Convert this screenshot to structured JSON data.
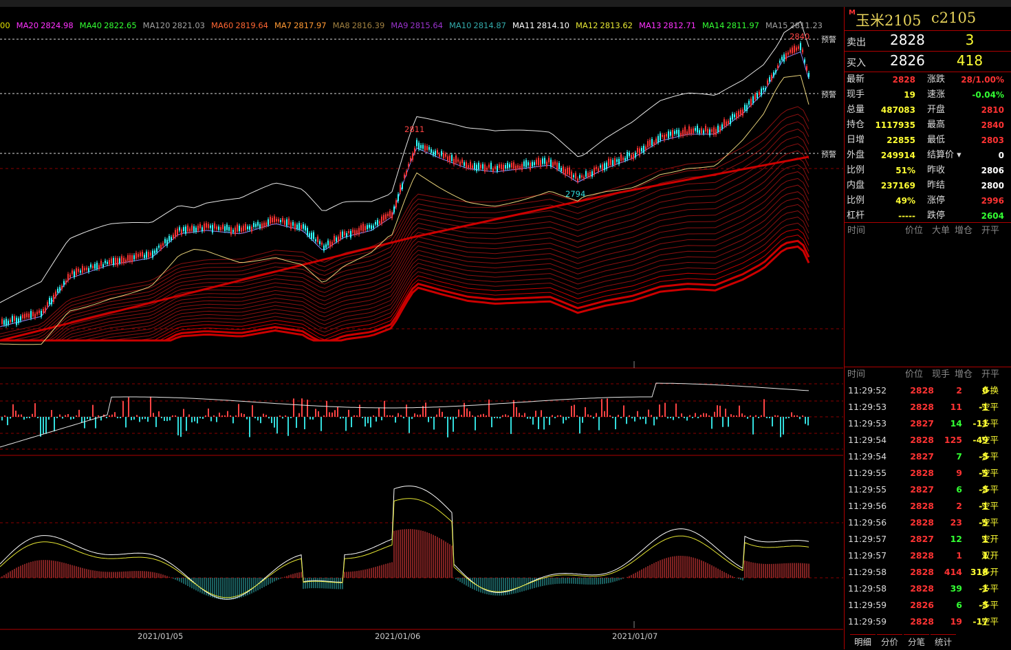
{
  "ma_bar": [
    {
      "label": "",
      "value": "00",
      "color": "#e0e000"
    },
    {
      "label": "MA20",
      "value": "2824.98",
      "color": "#ff33ff"
    },
    {
      "label": "MA40",
      "value": "2822.65",
      "color": "#33ff33"
    },
    {
      "label": "MA120",
      "value": "2821.03",
      "color": "#a0a0a0"
    },
    {
      "label": "MA60",
      "value": "2819.64",
      "color": "#ff6633"
    },
    {
      "label": "MA7",
      "value": "2817.97",
      "color": "#ff9933"
    },
    {
      "label": "MA8",
      "value": "2816.39",
      "color": "#a08040"
    },
    {
      "label": "MA9",
      "value": "2815.64",
      "color": "#9933cc"
    },
    {
      "label": "MA10",
      "value": "2814.87",
      "color": "#33aaaa"
    },
    {
      "label": "MA11",
      "value": "2814.10",
      "color": "#ffffff"
    },
    {
      "label": "MA12",
      "value": "2813.62",
      "color": "#e6e633"
    },
    {
      "label": "MA13",
      "value": "2812.71",
      "color": "#ff33ff"
    },
    {
      "label": "MA14",
      "value": "2811.97",
      "color": "#33ff33"
    },
    {
      "label": "MA15",
      "value": "2811.23",
      "color": "#a0a0a0"
    }
  ],
  "alarms": [
    "预警",
    "预警",
    "预警"
  ],
  "price_marks": {
    "high": "2840",
    "peak_left": "2811",
    "low": "2794"
  },
  "dates": [
    "2021/01/05",
    "2021/01/06",
    "2021/01/07"
  ],
  "panel": {
    "title_mark": "M",
    "title": "玉米2105",
    "code": "c2105",
    "ask": {
      "label": "卖出",
      "price": "2828",
      "vol": "3"
    },
    "bid": {
      "label": "买入",
      "price": "2826",
      "vol": "418"
    },
    "stats_left": [
      {
        "k": "最新",
        "v": "2828",
        "c": "#ff3333"
      },
      {
        "k": "现手",
        "v": "19",
        "c": "#ffff33"
      },
      {
        "k": "总量",
        "v": "487083",
        "c": "#ffff33"
      },
      {
        "k": "持仓",
        "v": "1117935",
        "c": "#ffff33"
      },
      {
        "k": "日增",
        "v": "22855",
        "c": "#ffff33"
      },
      {
        "k": "外盘",
        "v": "249914",
        "c": "#ffff33"
      },
      {
        "k": "比例",
        "v": "51%",
        "c": "#ffff33"
      },
      {
        "k": "内盘",
        "v": "237169",
        "c": "#ffff33"
      },
      {
        "k": "比例",
        "v": "49%",
        "c": "#ffff33"
      },
      {
        "k": "杠杆",
        "v": "-----",
        "c": "#ffff33"
      }
    ],
    "stats_right": [
      {
        "k": "涨跌",
        "v": "28/1.00%",
        "c": "#ff3333"
      },
      {
        "k": "速涨",
        "v": "-0.04%",
        "c": "#33ff33"
      },
      {
        "k": "开盘",
        "v": "2810",
        "c": "#ff3333"
      },
      {
        "k": "最高",
        "v": "2840",
        "c": "#ff3333"
      },
      {
        "k": "最低",
        "v": "2803",
        "c": "#ff3333"
      },
      {
        "k": "结算价 ▾",
        "v": "0",
        "c": "#ffffff"
      },
      {
        "k": "昨收",
        "v": "2806",
        "c": "#ffffff"
      },
      {
        "k": "昨结",
        "v": "2800",
        "c": "#ffffff"
      },
      {
        "k": "涨停",
        "v": "2996",
        "c": "#ff3333"
      },
      {
        "k": "跌停",
        "v": "2604",
        "c": "#33ff33"
      }
    ],
    "big_header": {
      "time": "时间",
      "price": "价位",
      "big": "大单",
      "oi": "增仓",
      "oc": "开平"
    },
    "tick_header": {
      "time": "时间",
      "price": "价位",
      "vol": "现手",
      "oi": "增仓",
      "oc": "开平"
    },
    "ticks": [
      {
        "time": "11:29:52",
        "price": "2828",
        "vol": "2",
        "oi": "0",
        "type": "多换",
        "pc": "#ff3333",
        "vc": "#ff3333",
        "oc": "#ffff33"
      },
      {
        "time": "11:29:53",
        "price": "2828",
        "vol": "11",
        "oi": "-1",
        "type": "空平",
        "pc": "#ff3333",
        "vc": "#ff3333",
        "oc": "#ffff33"
      },
      {
        "time": "11:29:53",
        "price": "2827",
        "vol": "14",
        "oi": "-11",
        "type": "多平",
        "pc": "#ff3333",
        "vc": "#33ff33",
        "oc": "#ffff33"
      },
      {
        "time": "11:29:54",
        "price": "2828",
        "vol": "125",
        "oi": "-49",
        "type": "空平",
        "pc": "#ff3333",
        "vc": "#ff3333",
        "oc": "#ffff33"
      },
      {
        "time": "11:29:54",
        "price": "2827",
        "vol": "7",
        "oi": "-5",
        "type": "多平",
        "pc": "#ff3333",
        "vc": "#33ff33",
        "oc": "#ffff33"
      },
      {
        "time": "11:29:55",
        "price": "2828",
        "vol": "9",
        "oi": "-5",
        "type": "空平",
        "pc": "#ff3333",
        "vc": "#ff3333",
        "oc": "#ffff33"
      },
      {
        "time": "11:29:55",
        "price": "2827",
        "vol": "6",
        "oi": "-5",
        "type": "多平",
        "pc": "#ff3333",
        "vc": "#33ff33",
        "oc": "#ffff33"
      },
      {
        "time": "11:29:56",
        "price": "2828",
        "vol": "2",
        "oi": "-1",
        "type": "空平",
        "pc": "#ff3333",
        "vc": "#ff3333",
        "oc": "#ffff33"
      },
      {
        "time": "11:29:56",
        "price": "2828",
        "vol": "23",
        "oi": "-5",
        "type": "空平",
        "pc": "#ff3333",
        "vc": "#ff3333",
        "oc": "#ffff33"
      },
      {
        "time": "11:29:57",
        "price": "2827",
        "vol": "12",
        "oi": "1",
        "type": "空开",
        "pc": "#ff3333",
        "vc": "#33ff33",
        "oc": "#ffff33"
      },
      {
        "time": "11:29:57",
        "price": "2828",
        "vol": "1",
        "oi": "1",
        "type": "双开",
        "pc": "#ff3333",
        "vc": "#ff3333",
        "oc": "#ffff33"
      },
      {
        "time": "11:29:58",
        "price": "2828",
        "vol": "414",
        "oi": "318",
        "type": "多开",
        "pc": "#ff3333",
        "vc": "#ff3333",
        "oc": "#ffff33"
      },
      {
        "time": "11:29:58",
        "price": "2828",
        "vol": "39",
        "oi": "-1",
        "type": "多平",
        "pc": "#ff3333",
        "vc": "#33ff33",
        "oc": "#ffff33"
      },
      {
        "time": "11:29:59",
        "price": "2826",
        "vol": "6",
        "oi": "-5",
        "type": "多平",
        "pc": "#ff3333",
        "vc": "#33ff33",
        "oc": "#ffff33"
      },
      {
        "time": "11:29:59",
        "price": "2828",
        "vol": "19",
        "oi": "-17",
        "type": "空平",
        "pc": "#ff3333",
        "vc": "#ff3333",
        "oc": "#ffff33"
      }
    ],
    "tabs": [
      "明细",
      "分价",
      "分笔",
      "统计"
    ]
  }
}
